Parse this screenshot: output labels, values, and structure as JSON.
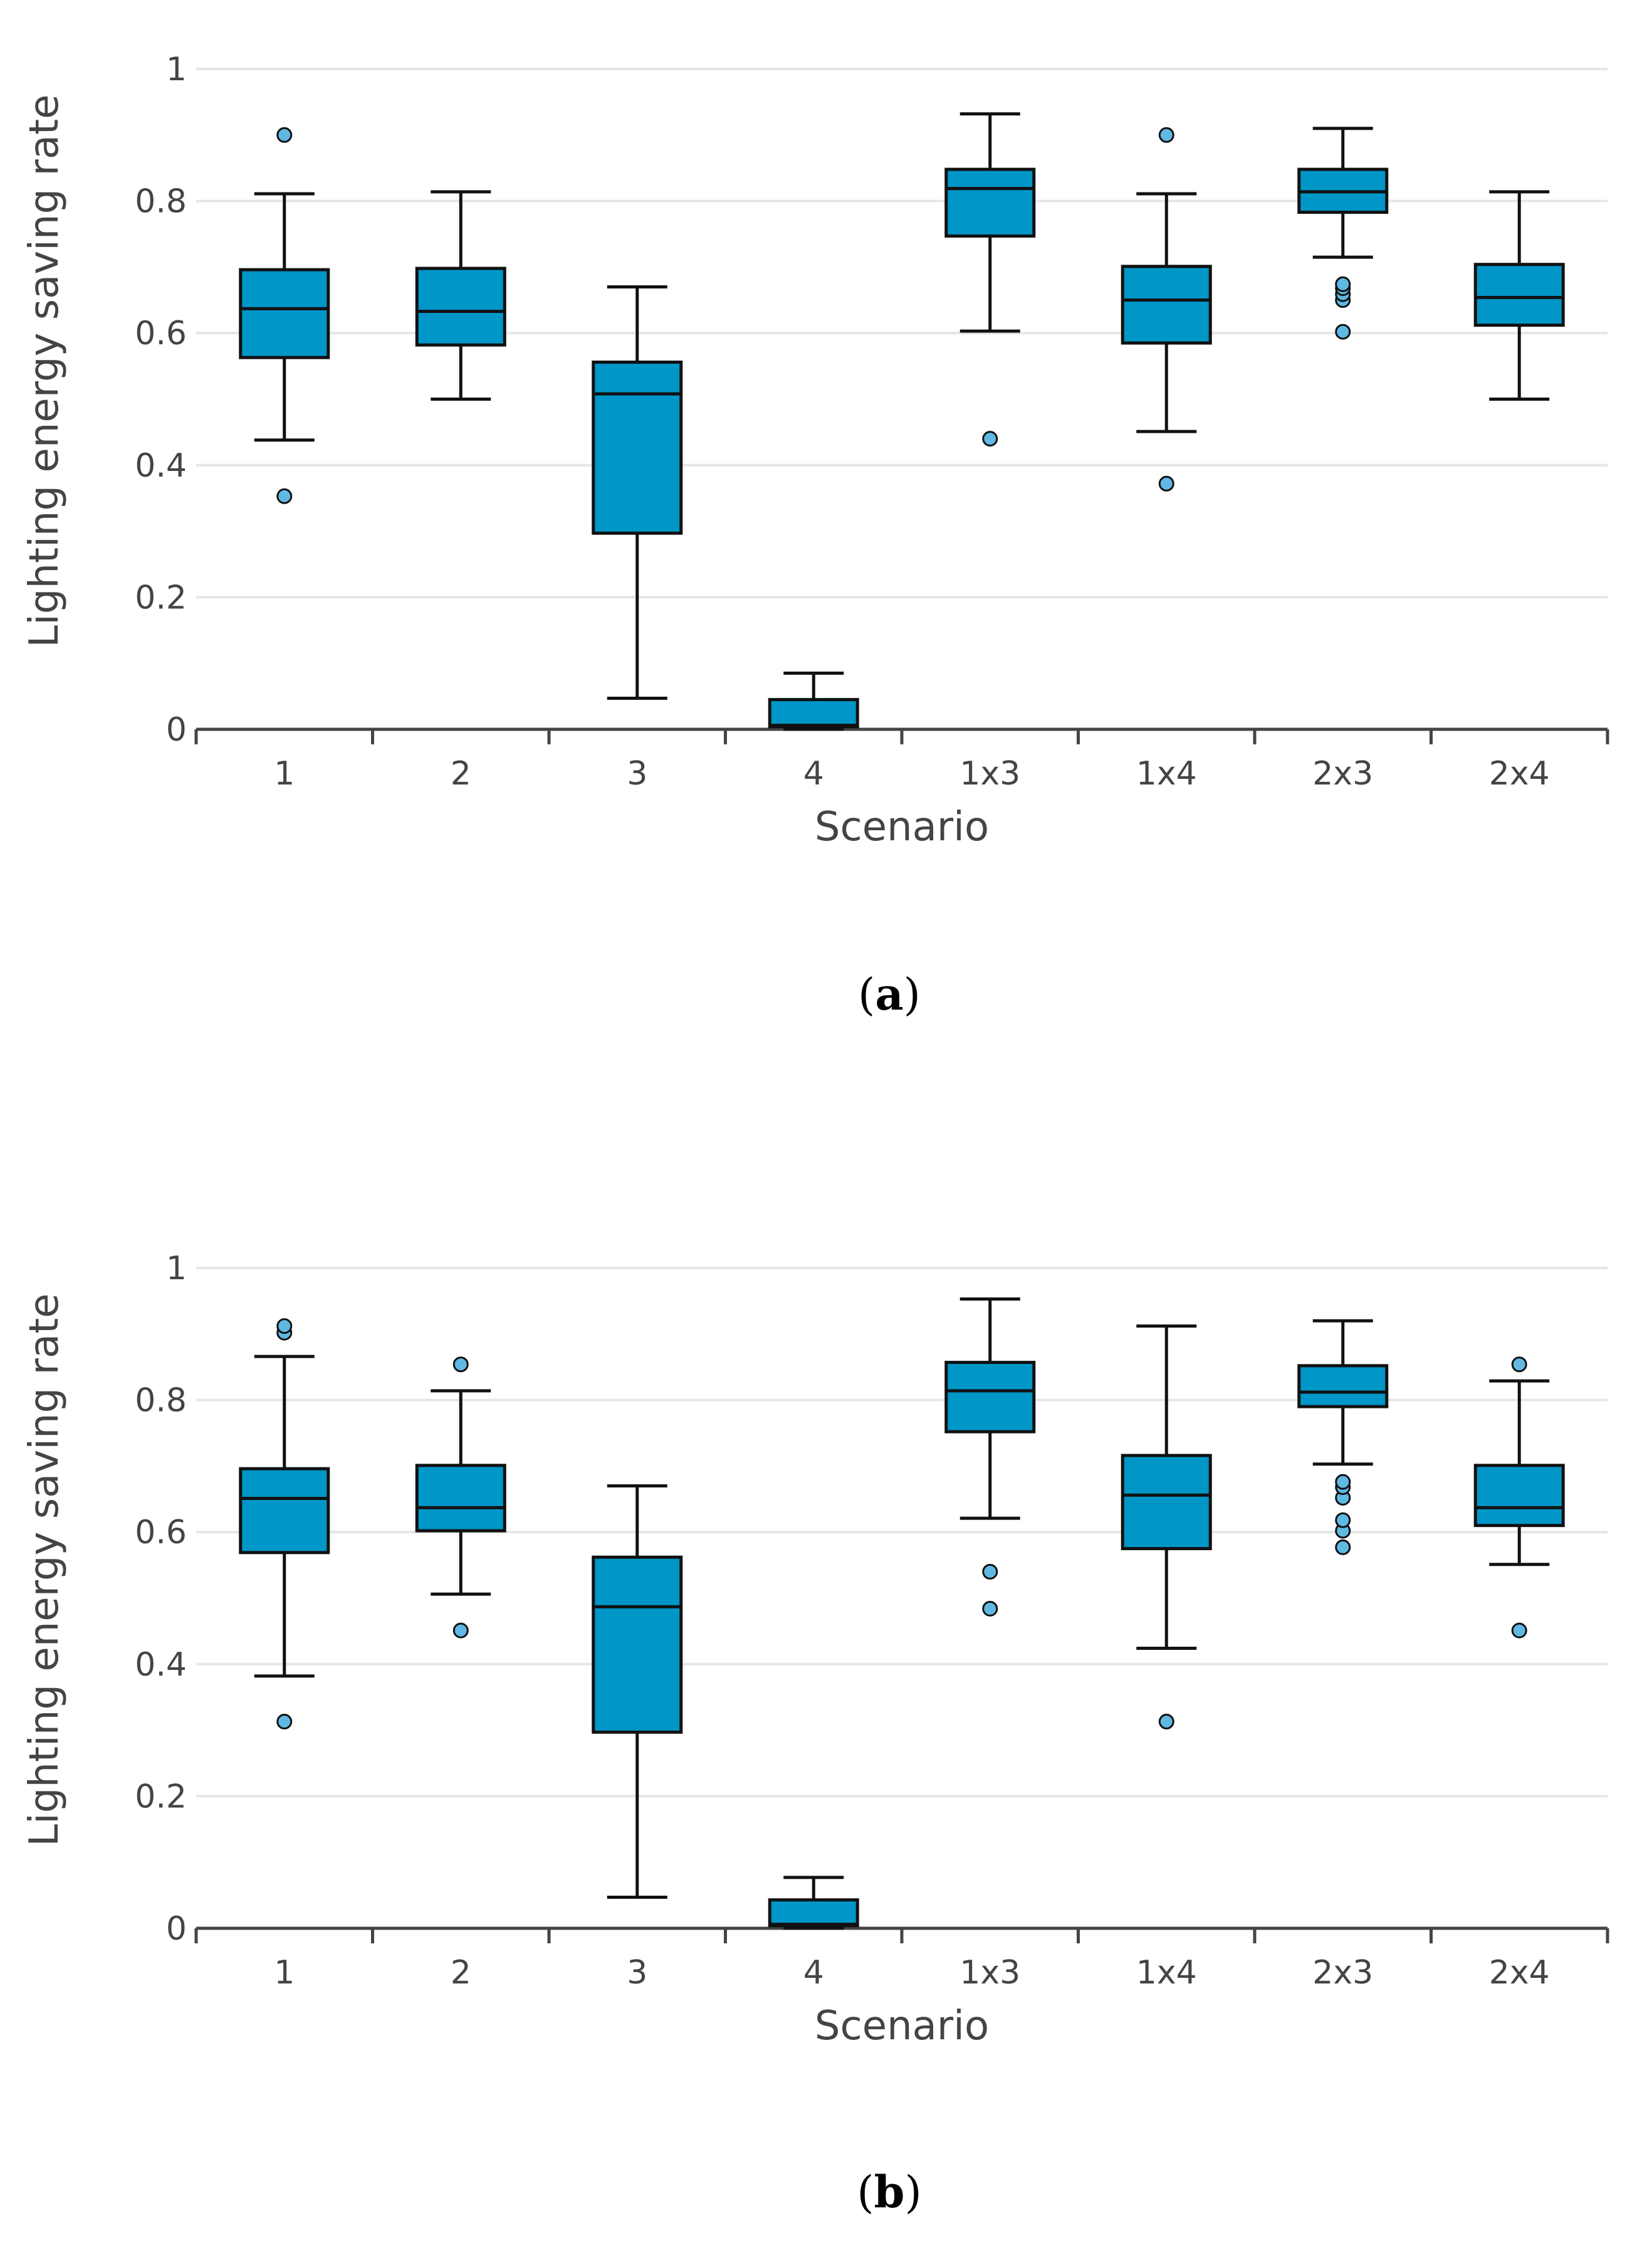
{
  "colors": {
    "box_fill": "#0096c8",
    "outlier_fill": "#5fb9e3",
    "stroke": "#111111",
    "grid": "#e6e6e6",
    "axis": "#444444"
  },
  "chart_data": [
    {
      "type": "box",
      "panel_label": "a",
      "xlabel": "Scenario",
      "ylabel": "Lighting energy saving rate",
      "ylim": [
        0,
        1
      ],
      "yticks": [
        "0",
        "0.2",
        "0.4",
        "0.6",
        "0.8",
        "1"
      ],
      "categories": [
        "1",
        "2",
        "3",
        "4",
        "1x3",
        "1x4",
        "2x3",
        "2x4"
      ],
      "boxes": [
        {
          "label": "1",
          "min": 0.438,
          "q1": 0.563,
          "median": 0.637,
          "q3": 0.696,
          "max": 0.811,
          "outliers": [
            0.353,
            0.9
          ]
        },
        {
          "label": "2",
          "min": 0.5,
          "q1": 0.582,
          "median": 0.633,
          "q3": 0.698,
          "max": 0.814,
          "outliers": []
        },
        {
          "label": "3",
          "min": 0.047,
          "q1": 0.297,
          "median": 0.508,
          "q3": 0.556,
          "max": 0.67,
          "outliers": []
        },
        {
          "label": "4",
          "min": 0.0,
          "q1": 0.004,
          "median": 0.006,
          "q3": 0.045,
          "max": 0.085,
          "outliers": []
        },
        {
          "label": "1x3",
          "min": 0.603,
          "q1": 0.747,
          "median": 0.819,
          "q3": 0.848,
          "max": 0.932,
          "outliers": [
            0.44
          ]
        },
        {
          "label": "1x4",
          "min": 0.451,
          "q1": 0.585,
          "median": 0.65,
          "q3": 0.701,
          "max": 0.811,
          "outliers": [
            0.372,
            0.9
          ]
        },
        {
          "label": "2x3",
          "min": 0.715,
          "q1": 0.783,
          "median": 0.814,
          "q3": 0.848,
          "max": 0.91,
          "outliers": [
            0.602,
            0.65,
            0.659,
            0.668,
            0.674
          ]
        },
        {
          "label": "2x4",
          "min": 0.5,
          "q1": 0.612,
          "median": 0.654,
          "q3": 0.704,
          "max": 0.814,
          "outliers": []
        }
      ]
    },
    {
      "type": "box",
      "panel_label": "b",
      "xlabel": "Scenario",
      "ylabel": "Lighting energy saving rate",
      "ylim": [
        0,
        1
      ],
      "yticks": [
        "0",
        "0.2",
        "0.4",
        "0.6",
        "0.8",
        "1"
      ],
      "categories": [
        "1",
        "2",
        "3",
        "4",
        "1x3",
        "1x4",
        "2x3",
        "2x4"
      ],
      "boxes": [
        {
          "label": "1",
          "min": 0.382,
          "q1": 0.569,
          "median": 0.651,
          "q3": 0.696,
          "max": 0.866,
          "outliers": [
            0.313,
            0.902,
            0.912
          ]
        },
        {
          "label": "2",
          "min": 0.506,
          "q1": 0.602,
          "median": 0.637,
          "q3": 0.701,
          "max": 0.814,
          "outliers": [
            0.451,
            0.854
          ]
        },
        {
          "label": "3",
          "min": 0.047,
          "q1": 0.297,
          "median": 0.487,
          "q3": 0.562,
          "max": 0.67,
          "outliers": []
        },
        {
          "label": "4",
          "min": 0.0,
          "q1": 0.004,
          "median": 0.006,
          "q3": 0.043,
          "max": 0.077,
          "outliers": []
        },
        {
          "label": "1x3",
          "min": 0.621,
          "q1": 0.752,
          "median": 0.814,
          "q3": 0.857,
          "max": 0.953,
          "outliers": [
            0.484,
            0.54
          ]
        },
        {
          "label": "1x4",
          "min": 0.424,
          "q1": 0.575,
          "median": 0.656,
          "q3": 0.716,
          "max": 0.912,
          "outliers": [
            0.313
          ]
        },
        {
          "label": "2x3",
          "min": 0.703,
          "q1": 0.79,
          "median": 0.812,
          "q3": 0.852,
          "max": 0.92,
          "outliers": [
            0.577,
            0.602,
            0.618,
            0.652,
            0.668,
            0.676
          ]
        },
        {
          "label": "2x4",
          "min": 0.551,
          "q1": 0.61,
          "median": 0.637,
          "q3": 0.701,
          "max": 0.829,
          "outliers": [
            0.451,
            0.854
          ]
        }
      ]
    }
  ]
}
